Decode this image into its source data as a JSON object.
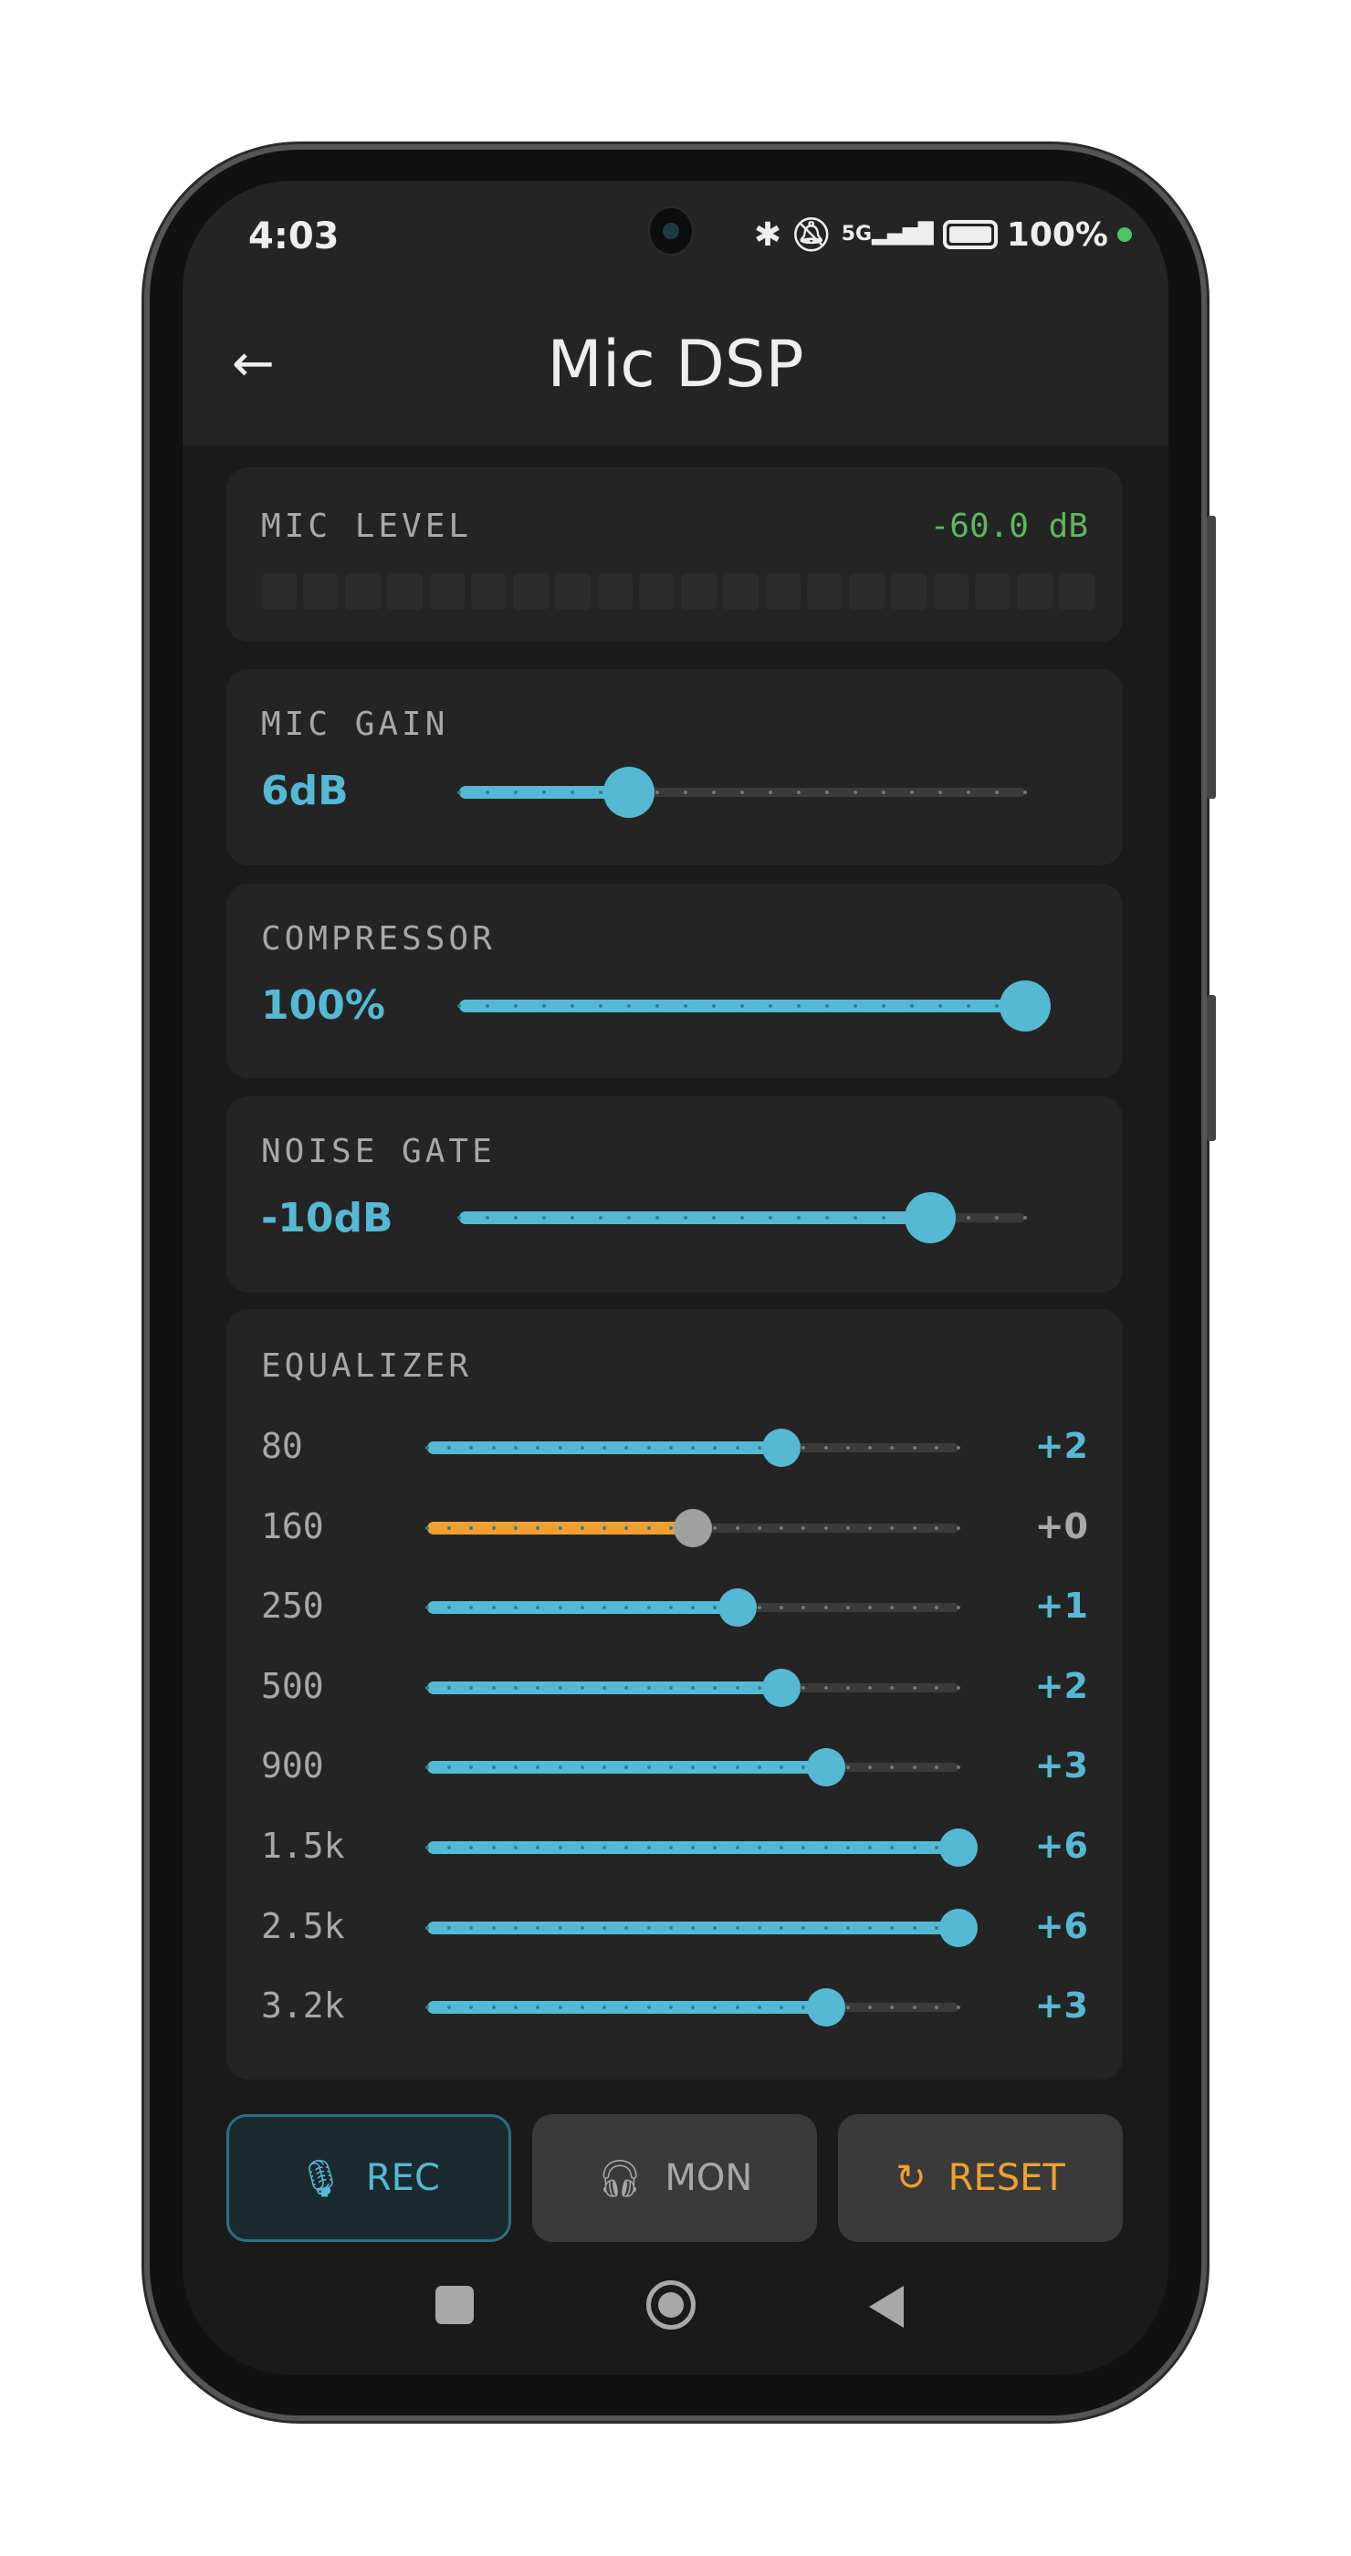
{
  "status_bar": {
    "time": "4:03",
    "network": "5G",
    "battery": "100%",
    "icons": [
      "bluetooth-icon",
      "bell-off-icon",
      "signal-icon",
      "battery-icon"
    ]
  },
  "header": {
    "title": "Mic DSP",
    "back_icon": "arrow-left-icon"
  },
  "mic_level": {
    "label": "MIC LEVEL",
    "value": "-60.0 dB",
    "segments": 20,
    "lit_segments": 0
  },
  "mic_gain": {
    "label": "MIC GAIN",
    "value": "6dB",
    "level": 0.3
  },
  "compressor": {
    "label": "COMPRESSOR",
    "value": "100%",
    "level": 1.0
  },
  "noise_gate": {
    "label": "NOISE GATE",
    "value": "-10dB",
    "level": 0.833
  },
  "equalizer": {
    "label": "EQUALIZER",
    "range": [
      -6,
      6
    ],
    "bands": [
      {
        "freq": "80",
        "value": "+2",
        "gain": 2
      },
      {
        "freq": "160",
        "value": "+0",
        "gain": 0
      },
      {
        "freq": "250",
        "value": "+1",
        "gain": 1
      },
      {
        "freq": "500",
        "value": "+2",
        "gain": 2
      },
      {
        "freq": "900",
        "value": "+3",
        "gain": 3
      },
      {
        "freq": "1.5k",
        "value": "+6",
        "gain": 6
      },
      {
        "freq": "2.5k",
        "value": "+6",
        "gain": 6
      },
      {
        "freq": "3.2k",
        "value": "+3",
        "gain": 3
      }
    ]
  },
  "buttons": {
    "rec": "REC",
    "mon": "MON",
    "reset": "RESET"
  },
  "colors": {
    "accent": "#56b9d3",
    "zero": "#f0a030",
    "neutral_knob": "#a0a0a0",
    "level_text": "#5cb860",
    "reset": "#f0a030"
  }
}
